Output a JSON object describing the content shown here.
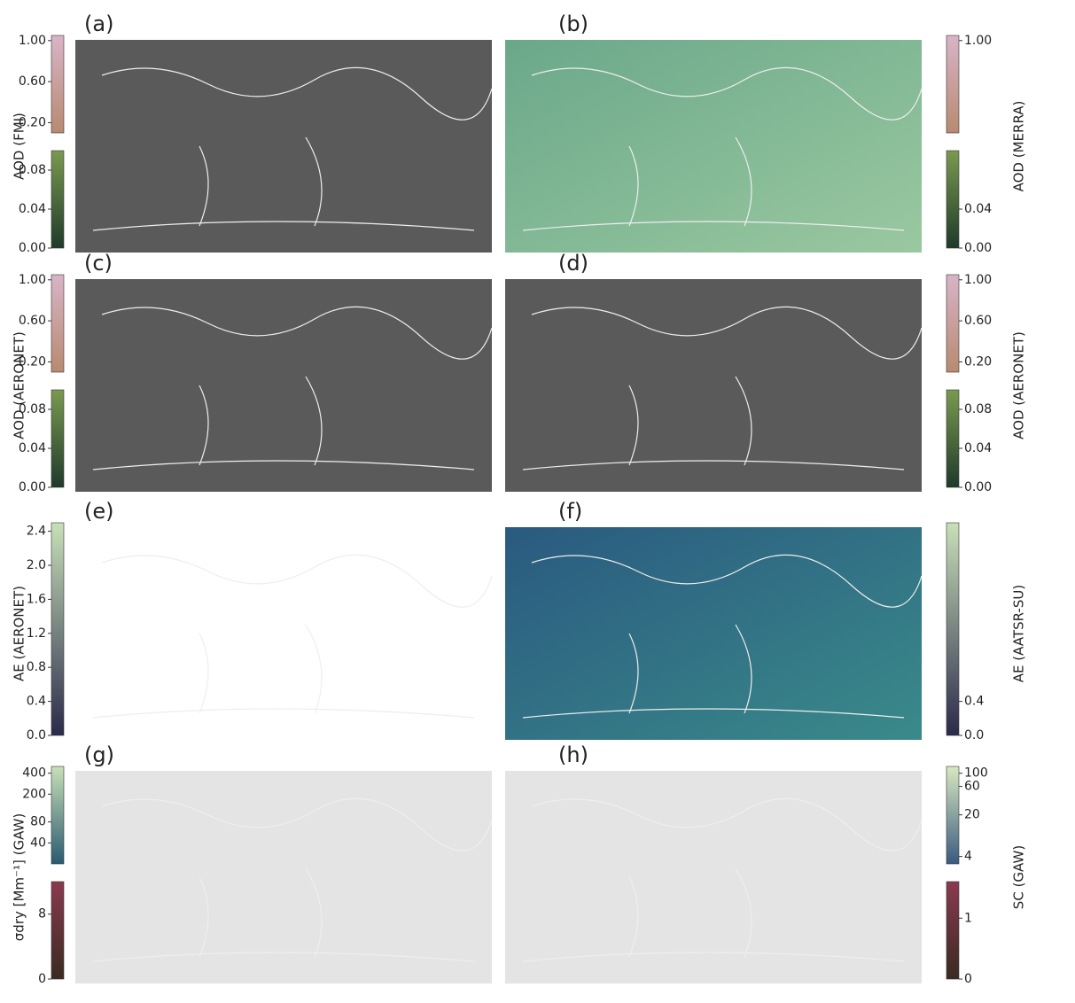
{
  "panels": [
    {
      "label": "(a)"
    },
    {
      "label": "(b)"
    },
    {
      "label": "(c)"
    },
    {
      "label": "(d)"
    },
    {
      "label": "(e)"
    },
    {
      "label": "(f)"
    },
    {
      "label": "(g)"
    },
    {
      "label": "(h)"
    }
  ],
  "colorbars": [
    {
      "row": 0,
      "side": "left",
      "label": "AOD (FMI)",
      "colors": [
        "#d8b4c8",
        "#b88a70"
      ],
      "upper": {
        "lim": [
          0.1,
          1.05
        ],
        "ticks": [
          {
            "value": 1.0,
            "label": "1.00"
          },
          {
            "value": 0.6,
            "label": "0.60"
          },
          {
            "value": 0.2,
            "label": "0.20"
          }
        ]
      },
      "lower": {
        "colors": [
          "#7a9a50",
          "#1f3a2a"
        ],
        "lim": [
          0,
          0.1
        ],
        "ticks": [
          {
            "value": 0.08,
            "label": "0.08"
          },
          {
            "value": 0.04,
            "label": "0.04"
          },
          {
            "value": 0,
            "label": "0.00"
          }
        ]
      }
    },
    {
      "row": 0,
      "side": "right",
      "label": "AOD (MERRA)",
      "colors": [
        "#d8b4c8",
        "#b88a70"
      ],
      "upper": {
        "lim": [
          0.1,
          1.05
        ],
        "ticks": [
          {
            "value": 1.0,
            "label": "1.00"
          }
        ]
      },
      "lower": {
        "colors": [
          "#7a9a50",
          "#1f3a2a"
        ],
        "lim": [
          0,
          0.1
        ],
        "ticks": [
          {
            "value": 0.04,
            "label": "0.04"
          },
          {
            "value": 0,
            "label": "0.00"
          }
        ]
      }
    },
    {
      "row": 1,
      "side": "left",
      "label": "AOD (AERONET)",
      "colors": [
        "#d8b4c8",
        "#b88a70"
      ],
      "upper": {
        "lim": [
          0.1,
          1.05
        ],
        "ticks": [
          {
            "value": 1.0,
            "label": "1.00"
          },
          {
            "value": 0.6,
            "label": "0.60"
          },
          {
            "value": 0.2,
            "label": "0.20"
          }
        ]
      },
      "lower": {
        "colors": [
          "#7a9a50",
          "#1f3a2a"
        ],
        "lim": [
          0,
          0.1
        ],
        "ticks": [
          {
            "value": 0.08,
            "label": "0.08"
          },
          {
            "value": 0.04,
            "label": "0.04"
          },
          {
            "value": 0,
            "label": "0.00"
          }
        ]
      }
    },
    {
      "row": 1,
      "side": "right",
      "label": "AOD (AERONET)",
      "colors": [
        "#d8b4c8",
        "#b88a70"
      ],
      "upper": {
        "lim": [
          0.1,
          1.05
        ],
        "ticks": [
          {
            "value": 1.0,
            "label": "1.00"
          },
          {
            "value": 0.6,
            "label": "0.60"
          },
          {
            "value": 0.2,
            "label": "0.20"
          }
        ]
      },
      "lower": {
        "colors": [
          "#7a9a50",
          "#1f3a2a"
        ],
        "lim": [
          0,
          0.1
        ],
        "ticks": [
          {
            "value": 0.08,
            "label": "0.08"
          },
          {
            "value": 0.04,
            "label": "0.04"
          },
          {
            "value": 0,
            "label": "0.00"
          }
        ]
      }
    },
    {
      "row": 2,
      "side": "left",
      "label": "AE (AERONET)",
      "colors": [
        "#c8e0b8",
        "#2a2a4a"
      ],
      "upper": {
        "lim": [
          0,
          2.5
        ],
        "ticks": [
          {
            "value": 2.4,
            "label": "2.4"
          },
          {
            "value": 2.0,
            "label": "2.0"
          },
          {
            "value": 1.6,
            "label": "1.6"
          },
          {
            "value": 1.2,
            "label": "1.2"
          },
          {
            "value": 0.8,
            "label": "0.8"
          },
          {
            "value": 0.4,
            "label": "0.4"
          },
          {
            "value": 0,
            "label": "0.0"
          }
        ]
      }
    },
    {
      "row": 2,
      "side": "right",
      "label": "AE (AATSR-SU)",
      "colors": [
        "#c8e0b8",
        "#2a2a4a"
      ],
      "upper": {
        "lim": [
          0,
          2.5
        ],
        "ticks": [
          {
            "value": 0.4,
            "label": "0.4"
          },
          {
            "value": 0,
            "label": "0.0"
          }
        ]
      }
    },
    {
      "row": 3,
      "side": "left",
      "label": "σdry [Mm⁻¹] (GAW)",
      "log": true,
      "colors": [
        "#c8e0b8",
        "#2a5a70"
      ],
      "upper": {
        "lim": [
          20,
          500
        ],
        "ticks": [
          400,
          200,
          80,
          40
        ]
      },
      "lower": {
        "colors": [
          "#8a3a50",
          "#3a2a20"
        ],
        "lim": [
          0,
          12
        ],
        "ticks": [
          8,
          0
        ]
      }
    },
    {
      "row": 3,
      "side": "right",
      "label": "SC (GAW)",
      "log": true,
      "colors": [
        "#d8e8c0",
        "#3a5a80"
      ],
      "upper": {
        "lim": [
          3,
          130
        ],
        "ticks": [
          100,
          60,
          20,
          4
        ]
      },
      "lower": {
        "colors": [
          "#8a3a50",
          "#3a2a20"
        ],
        "lim": [
          0,
          1.6
        ],
        "ticks": [
          1,
          0
        ]
      }
    }
  ]
}
